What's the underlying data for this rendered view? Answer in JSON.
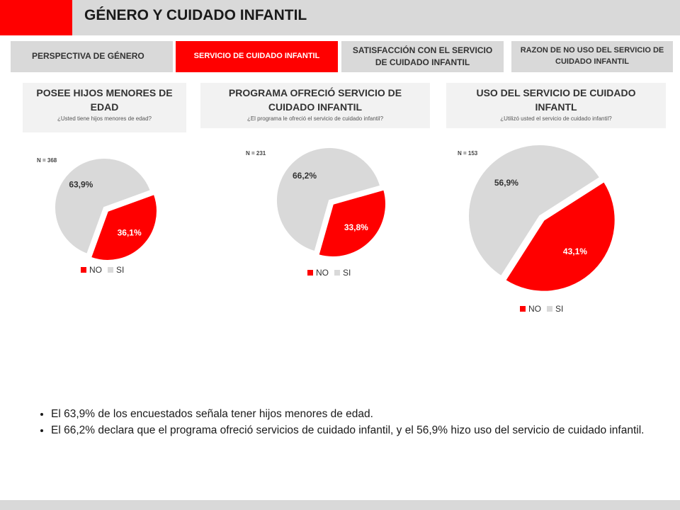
{
  "header": {
    "title": "GÉNERO Y CUIDADO INFANTIL"
  },
  "tabs": [
    {
      "label": "PERSPECTIVA DE GÉNERO",
      "active": false
    },
    {
      "label": "SERVICIO DE CUIDADO INFANTIL",
      "active": true
    },
    {
      "label": "SATISFACCIÓN CON EL SERVICIO DE CUIDADO INFANTIL",
      "active": false
    },
    {
      "label": "RAZON DE NO USO DEL SERVICIO DE CUIDADO INFANTIL",
      "active": false
    }
  ],
  "colors": {
    "accent": "#ff0000",
    "gray": "#d9d9d9",
    "no": "#ff0000",
    "si": "#d9d9d9"
  },
  "legend": {
    "no": "NO",
    "si": "SI"
  },
  "chart_data": [
    {
      "type": "pie",
      "title": "POSEE HIJOS MENORES DE EDAD",
      "subtitle": "¿Usted tiene hijos menores de edad?",
      "n_label": "N = 368",
      "categories": [
        "NO",
        "SI"
      ],
      "values": [
        36.1,
        63.9
      ],
      "value_labels": [
        "36,1%",
        "63,9%"
      ],
      "legend_position": "bottom"
    },
    {
      "type": "pie",
      "title": "PROGRAMA OFRECIÓ SERVICIO DE CUIDADO INFANTIL",
      "subtitle": "¿El programa le ofreció el servicio de cuidado infantil?",
      "n_label": "N = 231",
      "categories": [
        "NO",
        "SI"
      ],
      "values": [
        33.8,
        66.2
      ],
      "value_labels": [
        "33,8%",
        "66,2%"
      ],
      "legend_position": "bottom"
    },
    {
      "type": "pie",
      "title": "USO DEL SERVICIO DE CUIDADO INFANTL",
      "subtitle": "¿Utilizó usted el servicio de cuidado infantil?",
      "n_label": "N = 153",
      "categories": [
        "NO",
        "SI"
      ],
      "values": [
        43.1,
        56.9
      ],
      "value_labels": [
        "43,1%",
        "56,9%"
      ],
      "legend_position": "bottom"
    }
  ],
  "notes": [
    "El 63,9% de los encuestados señala tener hijos menores de edad.",
    "El 66,2% declara que el programa ofreció servicios de cuidado infantil, y el 56,9% hizo uso del servicio de cuidado infantil."
  ]
}
